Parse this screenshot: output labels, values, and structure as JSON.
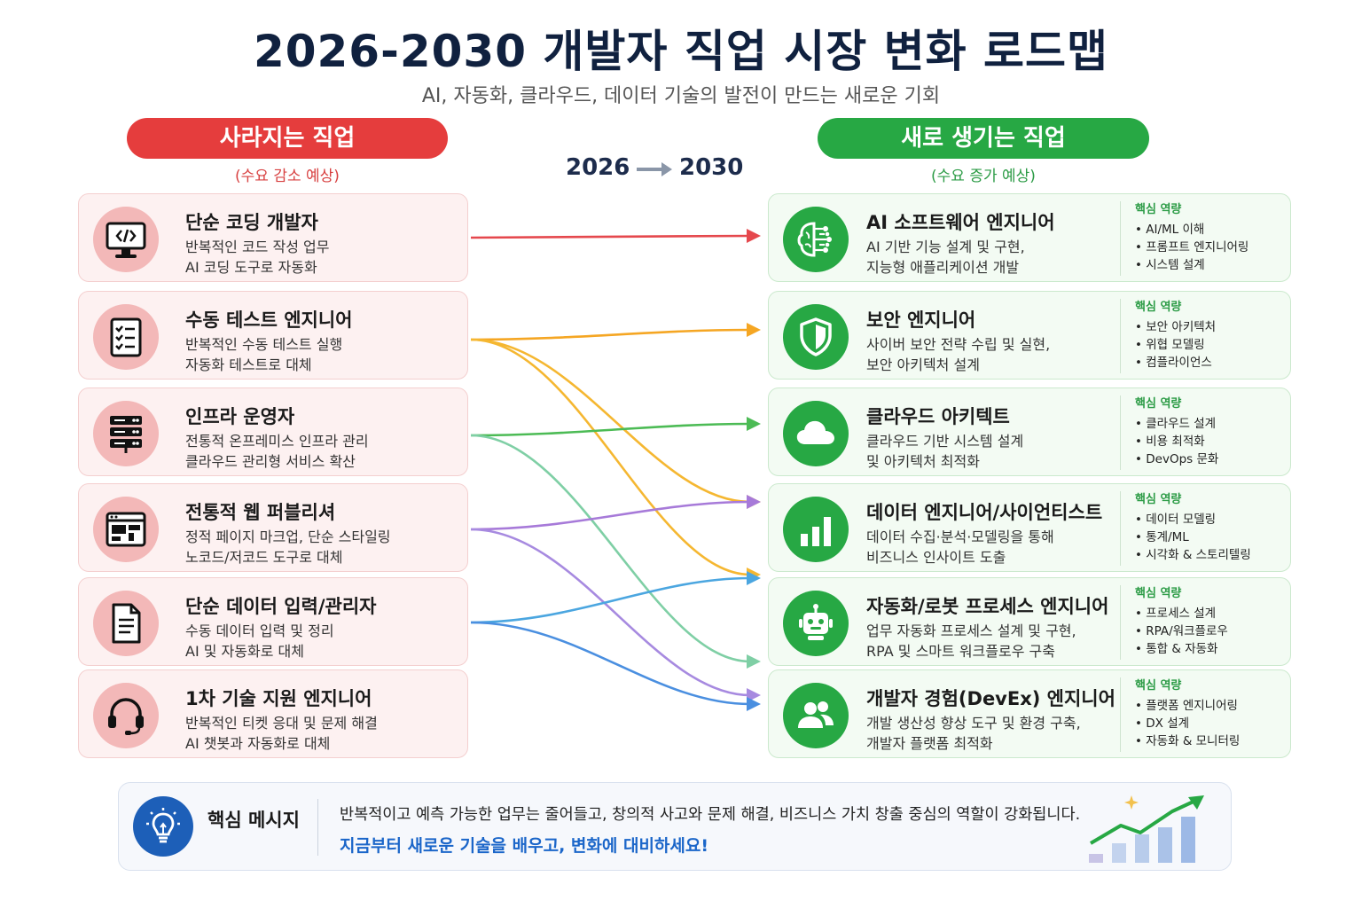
{
  "header": {
    "title": "2026-2030 개발자 직업 시장 변화 로드맵",
    "subtitle": "AI, 자동화, 클라우드, 데이터 기술의 발전이 만드는 새로운 기회"
  },
  "left": {
    "heading": "사라지는 직업",
    "note": "(수요 감소 예상)",
    "accent": "#e53d3d",
    "items": [
      {
        "title": "단순 코딩 개발자",
        "desc1": "반복적인 코드 작성 업무",
        "desc2": "AI 코딩 도구로 자동화",
        "icon": "code-monitor-icon"
      },
      {
        "title": "수동 테스트 엔지니어",
        "desc1": "반복적인 수동 테스트 실행",
        "desc2": "자동화 테스트로 대체",
        "icon": "checklist-icon"
      },
      {
        "title": "인프라 운영자",
        "desc1": "전통적 온프레미스 인프라 관리",
        "desc2": "클라우드 관리형 서비스 확산",
        "icon": "server-icon"
      },
      {
        "title": "전통적 웹 퍼블리셔",
        "desc1": "정적 페이지 마크업, 단순 스타일링",
        "desc2": "노코드/저코드 도구로 대체",
        "icon": "web-layout-icon"
      },
      {
        "title": "단순 데이터 입력/관리자",
        "desc1": "수동 데이터 입력 및 정리",
        "desc2": "AI 및 자동화로 대체",
        "icon": "document-icon"
      },
      {
        "title": "1차 기술 지원 엔지니어",
        "desc1": "반복적인 티켓 응대 및 문제 해결",
        "desc2": "AI 챗봇과 자동화로 대체",
        "icon": "headset-icon"
      }
    ]
  },
  "timeline": {
    "from": "2026",
    "to": "2030"
  },
  "right": {
    "heading": "새로 생기는 직업",
    "note": "(수요 증가 예상)",
    "accent": "#27a844",
    "items": [
      {
        "title": "AI 소프트웨어 엔지니어",
        "desc1": "AI 기반 기능 설계 및 구현,",
        "desc2": "지능형 애플리케이션 개발",
        "icon": "ai-brain-icon",
        "skills_head": "핵심 역량",
        "skills": [
          "AI/ML 이해",
          "프롬프트 엔지니어링",
          "시스템 설계"
        ]
      },
      {
        "title": "보안 엔지니어",
        "desc1": "사이버 보안 전략 수립 및 실현,",
        "desc2": "보안 아키텍처 설계",
        "icon": "shield-icon",
        "skills_head": "핵심 역량",
        "skills": [
          "보안 아키텍처",
          "위협 모델링",
          "컴플라이언스"
        ]
      },
      {
        "title": "클라우드 아키텍트",
        "desc1": "클라우드 기반 시스템 설계",
        "desc2": "및 아키텍처 최적화",
        "icon": "cloud-icon",
        "skills_head": "핵심 역량",
        "skills": [
          "클라우드 설계",
          "비용 최적화",
          "DevOps 문화"
        ]
      },
      {
        "title": "데이터 엔지니어/사이언티스트",
        "desc1": "데이터 수집·분석·모델링을 통해",
        "desc2": "비즈니스 인사이트 도출",
        "icon": "bar-chart-icon",
        "skills_head": "핵심 역량",
        "skills": [
          "데이터 모델링",
          "통계/ML",
          "시각화 & 스토리텔링"
        ]
      },
      {
        "title": "자동화/로봇 프로세스 엔지니어",
        "desc1": "업무 자동화 프로세스 설계 및 구현,",
        "desc2": "RPA 및 스마트 워크플로우 구축",
        "icon": "robot-icon",
        "skills_head": "핵심 역량",
        "skills": [
          "프로세스 설계",
          "RPA/워크플로우",
          "통합 & 자동화"
        ]
      },
      {
        "title": "개발자 경험(DevEx) 엔지니어",
        "desc1": "개발 생산성 향상 도구 및 환경 구축,",
        "desc2": "개발자 플랫폼 최적화",
        "icon": "people-icon",
        "skills_head": "핵심 역량",
        "skills": [
          "플랫폼 엔지니어링",
          "DX 설계",
          "자동화 & 모니터링"
        ]
      }
    ]
  },
  "connections": [
    {
      "from": 0,
      "to": 0,
      "color": "#e5484d"
    },
    {
      "from": 1,
      "to": 1,
      "color": "#f5a623"
    },
    {
      "from": 1,
      "to": 3,
      "color": "#f5b731"
    },
    {
      "from": 1,
      "to": 4,
      "color": "#f5b731"
    },
    {
      "from": 2,
      "to": 2,
      "color": "#4cbb55"
    },
    {
      "from": 2,
      "to": 5,
      "color": "#7fcfa5"
    },
    {
      "from": 3,
      "to": 3,
      "color": "#a77ad9"
    },
    {
      "from": 3,
      "to": 5,
      "color": "#a78ae0"
    },
    {
      "from": 4,
      "to": 4,
      "color": "#4ba6e0"
    },
    {
      "from": 4,
      "to": 5,
      "color": "#4a8fe0"
    }
  ],
  "message": {
    "label": "핵심 메시지",
    "line1": "반복적이고 예측 가능한 업무는 줄어들고, 창의적 사고와 문제 해결, 비즈니스 가치 창출 중심의 역할이 강화됩니다.",
    "line2": "지금부터 새로운 기술을 배우고, 변화에 대비하세요!",
    "icon": "lightbulb-icon"
  }
}
